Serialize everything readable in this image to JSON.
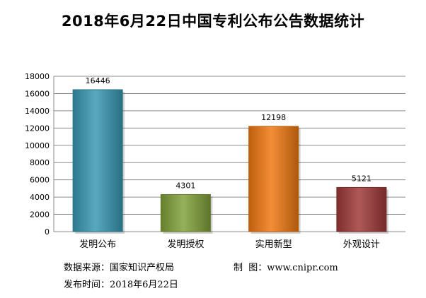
{
  "chart_data": {
    "type": "bar",
    "title": "2018年6月22日中国专利公布公告数据统计",
    "categories": [
      "发明公布",
      "发明授权",
      "实用新型",
      "外观设计"
    ],
    "values": [
      16446,
      4301,
      12198,
      5121
    ],
    "ylim": [
      0,
      18000
    ],
    "yticks": [
      0,
      2000,
      4000,
      6000,
      8000,
      10000,
      12000,
      14000,
      16000,
      18000
    ],
    "grid": true,
    "colors": [
      "#3a9ab5",
      "#82a33c",
      "#f27a12",
      "#a23a3a"
    ],
    "xlabel": "",
    "ylabel": ""
  },
  "footer": {
    "source_label": "数据来源：",
    "source_value": "国家知识产权局",
    "maker_label": "制  图：",
    "maker_value": "www.cnipr.com",
    "date_label": "发布时间：",
    "date_value": "2018年6月22日"
  }
}
